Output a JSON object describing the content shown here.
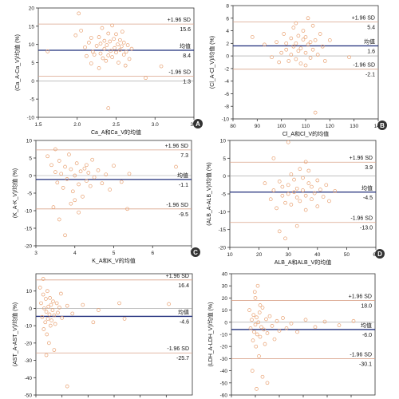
{
  "colors": {
    "mean_line": "#1f2d7a",
    "limit_line": "#d9a38a",
    "zero_line": "#9a9a9a",
    "points": "#e8a070",
    "frame": "#333333",
    "badge_fill": "#333333"
  },
  "chart_data": [
    {
      "type": "scatter",
      "panel_label": "A",
      "xlabel": "Ca_A和Ca_V的均值",
      "ylabel": "(Ca_A-Ca_V)/均值 (%)",
      "xlim": [
        1.5,
        3.5
      ],
      "ylim": [
        -10,
        20
      ],
      "xticks": [
        1.5,
        2.0,
        2.5,
        3.0,
        3.5
      ],
      "xtick_labels": [
        "1.5",
        "2.0",
        "2.5",
        "3.0",
        "3.5"
      ],
      "yticks": [
        -10,
        -5,
        0,
        5,
        10,
        15,
        20
      ],
      "ytick_labels": [
        "-10",
        "-5",
        "0",
        "5",
        "10",
        "15",
        "20"
      ],
      "upper": {
        "label": "+1.96 SD",
        "value": 15.6,
        "value_label": "15.6"
      },
      "mean": {
        "label": "均值",
        "value": 8.4,
        "value_label": "8.4"
      },
      "lower": {
        "label": "-1.96 SD",
        "value": 1.3,
        "value_label": "1.3"
      },
      "points": [
        [
          1.62,
          8.1
        ],
        [
          1.98,
          12.5
        ],
        [
          2.02,
          18.5
        ],
        [
          2.05,
          13.8
        ],
        [
          2.1,
          9.2
        ],
        [
          2.12,
          6.8
        ],
        [
          2.15,
          10.5
        ],
        [
          2.18,
          11.8
        ],
        [
          2.2,
          8.0
        ],
        [
          2.22,
          7.2
        ],
        [
          2.25,
          9.6
        ],
        [
          2.28,
          12.0
        ],
        [
          2.3,
          10.2
        ],
        [
          2.3,
          7.5
        ],
        [
          2.32,
          14.5
        ],
        [
          2.33,
          6.2
        ],
        [
          2.35,
          8.8
        ],
        [
          2.35,
          11.0
        ],
        [
          2.37,
          5.5
        ],
        [
          2.38,
          9.8
        ],
        [
          2.4,
          13.0
        ],
        [
          2.4,
          7.0
        ],
        [
          2.42,
          10.8
        ],
        [
          2.43,
          8.2
        ],
        [
          2.45,
          15.2
        ],
        [
          2.45,
          6.5
        ],
        [
          2.47,
          11.5
        ],
        [
          2.48,
          9.0
        ],
        [
          2.5,
          12.8
        ],
        [
          2.5,
          7.8
        ],
        [
          2.52,
          10.0
        ],
        [
          2.53,
          5.0
        ],
        [
          2.55,
          8.5
        ],
        [
          2.55,
          11.2
        ],
        [
          2.57,
          9.5
        ],
        [
          2.58,
          13.5
        ],
        [
          2.6,
          7.2
        ],
        [
          2.6,
          10.5
        ],
        [
          2.62,
          4.2
        ],
        [
          2.63,
          8.0
        ],
        [
          2.65,
          9.8
        ],
        [
          2.67,
          6.0
        ],
        [
          2.4,
          -7.5
        ],
        [
          2.88,
          0.8
        ],
        [
          3.08,
          4.0
        ],
        [
          2.28,
          3.5
        ],
        [
          2.18,
          4.8
        ],
        [
          2.7,
          8.8
        ]
      ]
    },
    {
      "type": "scatter",
      "panel_label": "B",
      "xlabel": "Cl_A和Cl_V的均值",
      "ylabel": "(Cl_A-Cl_V)/均值 (%)",
      "xlim": [
        80,
        140
      ],
      "ylim": [
        -10,
        8
      ],
      "xticks": [
        80,
        90,
        100,
        110,
        120,
        130,
        140
      ],
      "xtick_labels": [
        "80",
        "90",
        "100",
        "110",
        "120",
        "130",
        "140"
      ],
      "yticks": [
        -10,
        -8,
        -6,
        -4,
        -2,
        0,
        2,
        4,
        6,
        8
      ],
      "ytick_labels": [
        "-10",
        "-8",
        "-6",
        "-4",
        "-2",
        "0",
        "2",
        "4",
        "6",
        "8"
      ],
      "upper": {
        "label": "+1.96 SD",
        "value": 5.4,
        "value_label": "5.4"
      },
      "mean": {
        "label": "均值",
        "value": 1.6,
        "value_label": "1.6"
      },
      "lower": {
        "label": "-1.96 SD",
        "value": -2.1,
        "value_label": "-2.1"
      },
      "points": [
        [
          88,
          3.0
        ],
        [
          93,
          1.8
        ],
        [
          96,
          -0.2
        ],
        [
          98,
          2.2
        ],
        [
          100,
          0.5
        ],
        [
          101,
          3.5
        ],
        [
          102,
          1.0
        ],
        [
          103,
          -0.8
        ],
        [
          104,
          2.8
        ],
        [
          104,
          0.2
        ],
        [
          105,
          4.5
        ],
        [
          105,
          1.5
        ],
        [
          106,
          -0.5
        ],
        [
          106,
          2.0
        ],
        [
          107,
          3.2
        ],
        [
          107,
          0.8
        ],
        [
          108,
          1.2
        ],
        [
          108,
          -1.2
        ],
        [
          109,
          2.6
        ],
        [
          109,
          4.0
        ],
        [
          110,
          0.5
        ],
        [
          110,
          3.0
        ],
        [
          111,
          1.8
        ],
        [
          111,
          6.0
        ],
        [
          112,
          2.2
        ],
        [
          112,
          -0.3
        ],
        [
          113,
          1.0
        ],
        [
          113,
          4.8
        ],
        [
          114,
          2.5
        ],
        [
          115,
          0.2
        ],
        [
          116,
          3.5
        ],
        [
          117,
          1.5
        ],
        [
          118,
          -0.8
        ],
        [
          102,
          2.0
        ],
        [
          106,
          5.2
        ],
        [
          110,
          -1.5
        ],
        [
          114,
          -9.0
        ],
        [
          128,
          -0.2
        ],
        [
          120,
          2.5
        ],
        [
          99,
          -1.0
        ]
      ]
    },
    {
      "type": "scatter",
      "panel_label": "C",
      "xlabel": "K_A和K_V的均值",
      "ylabel": "(K_A-K_V)/均值 (%)",
      "xlim": [
        3,
        7
      ],
      "ylim": [
        -20,
        10
      ],
      "xticks": [
        3,
        4,
        5,
        6,
        7
      ],
      "xtick_labels": [
        "3",
        "4",
        "5",
        "6",
        "7"
      ],
      "yticks": [
        -20,
        -15,
        -10,
        -5,
        0,
        5,
        10
      ],
      "ytick_labels": [
        "-20",
        "-15",
        "-10",
        "-5",
        "0",
        "5",
        "10"
      ],
      "upper": {
        "label": "+1.96 SD",
        "value": 7.3,
        "value_label": "7.3"
      },
      "mean": {
        "label": "均值",
        "value": -1.1,
        "value_label": "-1.1"
      },
      "lower": {
        "label": "-1.96 SD",
        "value": -9.5,
        "value_label": "-9.5"
      },
      "points": [
        [
          3.3,
          5.5
        ],
        [
          3.4,
          3.0
        ],
        [
          3.5,
          1.0
        ],
        [
          3.55,
          -2.0
        ],
        [
          3.6,
          4.2
        ],
        [
          3.65,
          0.5
        ],
        [
          3.7,
          -3.5
        ],
        [
          3.75,
          2.5
        ],
        [
          3.8,
          -1.0
        ],
        [
          3.85,
          6.0
        ],
        [
          3.9,
          1.8
        ],
        [
          3.95,
          -4.5
        ],
        [
          4.0,
          0.0
        ],
        [
          4.05,
          3.5
        ],
        [
          4.1,
          -2.5
        ],
        [
          4.15,
          1.2
        ],
        [
          4.2,
          -6.0
        ],
        [
          4.25,
          2.0
        ],
        [
          4.3,
          -1.5
        ],
        [
          4.35,
          0.8
        ],
        [
          4.4,
          -3.0
        ],
        [
          4.45,
          4.5
        ],
        [
          4.5,
          -0.5
        ],
        [
          4.6,
          1.5
        ],
        [
          4.7,
          -2.2
        ],
        [
          4.8,
          0.3
        ],
        [
          4.9,
          -4.0
        ],
        [
          5.0,
          2.8
        ],
        [
          5.2,
          -1.8
        ],
        [
          5.4,
          0.5
        ],
        [
          3.45,
          -9.0
        ],
        [
          3.6,
          -12.5
        ],
        [
          3.75,
          -17.0
        ],
        [
          3.9,
          -8.0
        ],
        [
          4.1,
          -10.5
        ],
        [
          5.35,
          -9.5
        ],
        [
          6.6,
          2.5
        ],
        [
          3.5,
          7.5
        ],
        [
          4.0,
          -7.0
        ],
        [
          4.3,
          3.0
        ]
      ]
    },
    {
      "type": "scatter",
      "panel_label": "D",
      "xlabel": "ALB_A和ALB_V的均值",
      "ylabel": "(ALB_A-ALB_V)/均值 (%)",
      "xlim": [
        10,
        60
      ],
      "ylim": [
        -20,
        10
      ],
      "xticks": [
        10,
        20,
        30,
        40,
        50,
        60
      ],
      "xtick_labels": [
        "10",
        "20",
        "30",
        "40",
        "50",
        "60"
      ],
      "yticks": [
        -20,
        -15,
        -10,
        -5,
        0,
        5,
        10
      ],
      "ytick_labels": [
        "-20",
        "-15",
        "-10",
        "-5",
        "0",
        "5",
        "10"
      ],
      "upper": {
        "label": "+1.96 SD",
        "value": 3.9,
        "value_label": "3.9"
      },
      "mean": {
        "label": "均值",
        "value": -4.5,
        "value_label": "-4.5"
      },
      "lower": {
        "label": "-1.96 SD",
        "value": -13.0,
        "value_label": "-13.0"
      },
      "points": [
        [
          22,
          -2.0
        ],
        [
          24,
          -6.5
        ],
        [
          25,
          -4.0
        ],
        [
          26,
          -9.0
        ],
        [
          27,
          -1.5
        ],
        [
          28,
          -5.5
        ],
        [
          28,
          -3.0
        ],
        [
          29,
          -7.5
        ],
        [
          30,
          -2.5
        ],
        [
          30,
          -5.0
        ],
        [
          31,
          0.5
        ],
        [
          31,
          -8.0
        ],
        [
          32,
          -4.5
        ],
        [
          32,
          -1.0
        ],
        [
          33,
          -6.0
        ],
        [
          33,
          -3.5
        ],
        [
          34,
          2.0
        ],
        [
          34,
          -7.0
        ],
        [
          35,
          -4.0
        ],
        [
          35,
          -0.5
        ],
        [
          36,
          -5.5
        ],
        [
          36,
          -9.5
        ],
        [
          37,
          -2.0
        ],
        [
          37,
          1.5
        ],
        [
          38,
          -6.5
        ],
        [
          38,
          -3.0
        ],
        [
          39,
          -4.8
        ],
        [
          40,
          -1.2
        ],
        [
          40,
          -8.5
        ],
        [
          41,
          -3.8
        ],
        [
          42,
          -5.8
        ],
        [
          43,
          -2.5
        ],
        [
          44,
          -7.0
        ],
        [
          46,
          -4.2
        ],
        [
          30,
          9.5
        ],
        [
          27,
          -15.5
        ],
        [
          29,
          -17.5
        ],
        [
          33,
          -14.0
        ],
        [
          25,
          5.0
        ],
        [
          36,
          4.0
        ]
      ]
    },
    {
      "type": "scatter",
      "panel_label": "",
      "xlabel": "",
      "ylabel": "(AST_A-AST_V)/均值 (%)",
      "xlim": [
        0,
        300
      ],
      "ylim": [
        -50,
        20
      ],
      "xticks": [
        0,
        50,
        100,
        150,
        200,
        250
      ],
      "xtick_labels": [
        "0",
        "50",
        "100",
        "150",
        "200",
        "250"
      ],
      "yticks": [
        -50,
        -40,
        -30,
        -20,
        -10,
        0,
        10
      ],
      "ytick_labels": [
        "-50",
        "-40",
        "-30",
        "-20",
        "-10",
        "0",
        "10"
      ],
      "upper": {
        "label": "+1.96 SD",
        "value": 16.4,
        "value_label": "16.4"
      },
      "mean": {
        "label": "均值",
        "value": -4.6,
        "value_label": "-4.6"
      },
      "lower": {
        "label": "-1.96 SD",
        "value": -25.7,
        "value_label": "-25.7"
      },
      "points": [
        [
          8,
          12.0
        ],
        [
          10,
          3.0
        ],
        [
          12,
          -5.0
        ],
        [
          14,
          8.0
        ],
        [
          15,
          -12.0
        ],
        [
          16,
          0.0
        ],
        [
          18,
          -8.0
        ],
        [
          19,
          5.5
        ],
        [
          20,
          -2.0
        ],
        [
          21,
          -15.0
        ],
        [
          22,
          10.0
        ],
        [
          23,
          -6.0
        ],
        [
          24,
          1.0
        ],
        [
          25,
          -20.0
        ],
        [
          26,
          -3.5
        ],
        [
          27,
          6.0
        ],
        [
          28,
          -10.0
        ],
        [
          29,
          2.0
        ],
        [
          30,
          -7.0
        ],
        [
          32,
          -1.0
        ],
        [
          33,
          4.0
        ],
        [
          35,
          -4.0
        ],
        [
          37,
          -9.0
        ],
        [
          40,
          3.0
        ],
        [
          42,
          -2.5
        ],
        [
          45,
          0.5
        ],
        [
          50,
          -5.5
        ],
        [
          60,
          1.5
        ],
        [
          70,
          -3.0
        ],
        [
          90,
          2.0
        ],
        [
          120,
          -1.0
        ],
        [
          160,
          3.0
        ],
        [
          170,
          -6.0
        ],
        [
          255,
          2.5
        ],
        [
          35,
          -24.0
        ],
        [
          60,
          -45.0
        ],
        [
          20,
          -27.0
        ],
        [
          14,
          17.0
        ],
        [
          48,
          8.5
        ],
        [
          110,
          -8.0
        ]
      ]
    },
    {
      "type": "scatter",
      "panel_label": "",
      "xlabel": "",
      "ylabel": "(LDH_A-LDH_V)/均值 (%)",
      "xlim": [
        0,
        1200
      ],
      "ylim": [
        -60,
        40
      ],
      "xticks": [
        0,
        200,
        400,
        600,
        800,
        1000
      ],
      "xtick_labels": [
        "0",
        "200",
        "400",
        "600",
        "800",
        "1,000"
      ],
      "yticks": [
        -60,
        -50,
        -40,
        -30,
        -20,
        -10,
        0,
        10,
        20,
        30,
        40
      ],
      "ytick_labels": [
        "-60",
        "-50",
        "-40",
        "-30",
        "-20",
        "-10",
        "0",
        "10",
        "20",
        "30",
        "40"
      ],
      "upper": {
        "label": "+1.96 SD",
        "value": 18.0,
        "value_label": "18.0"
      },
      "mean": {
        "label": "均值",
        "value": -6.0,
        "value_label": "-6.0"
      },
      "lower": {
        "label": "-1.96 SD",
        "value": -30.1,
        "value_label": "-30.1"
      },
      "points": [
        [
          150,
          10.0
        ],
        [
          160,
          -5.0
        ],
        [
          170,
          2.0
        ],
        [
          180,
          -15.0
        ],
        [
          185,
          6.0
        ],
        [
          190,
          -8.0
        ],
        [
          195,
          25.0
        ],
        [
          200,
          -2.0
        ],
        [
          205,
          -20.0
        ],
        [
          210,
          4.0
        ],
        [
          215,
          -10.0
        ],
        [
          220,
          30.0
        ],
        [
          225,
          0.0
        ],
        [
          230,
          -28.0
        ],
        [
          235,
          8.0
        ],
        [
          240,
          -12.0
        ],
        [
          250,
          -4.0
        ],
        [
          260,
          12.0
        ],
        [
          270,
          -6.0
        ],
        [
          280,
          -18.0
        ],
        [
          290,
          2.5
        ],
        [
          300,
          -9.0
        ],
        [
          320,
          5.0
        ],
        [
          340,
          -3.0
        ],
        [
          360,
          -14.0
        ],
        [
          380,
          1.0
        ],
        [
          400,
          -7.0
        ],
        [
          430,
          3.5
        ],
        [
          460,
          -5.0
        ],
        [
          500,
          -1.0
        ],
        [
          550,
          -8.0
        ],
        [
          620,
          2.0
        ],
        [
          700,
          -4.0
        ],
        [
          780,
          0.5
        ],
        [
          900,
          -2.5
        ],
        [
          1020,
          1.0
        ],
        [
          175,
          -40.0
        ],
        [
          210,
          -55.0
        ],
        [
          260,
          -45.0
        ],
        [
          300,
          -50.0
        ],
        [
          200,
          20.0
        ],
        [
          240,
          14.0
        ]
      ]
    }
  ]
}
